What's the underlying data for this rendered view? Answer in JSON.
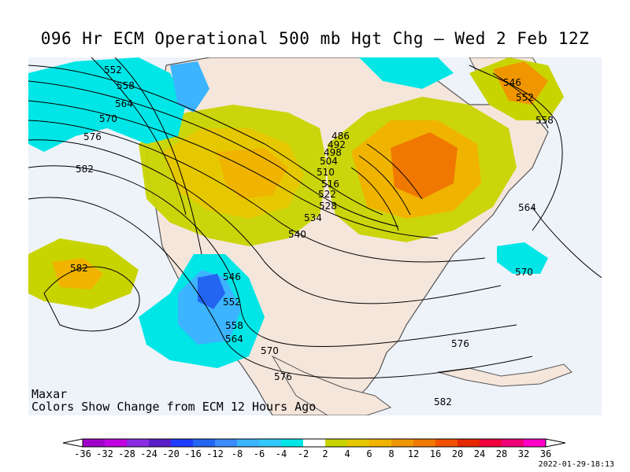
{
  "title": "096 Hr ECM Operational 500 mb Hgt Chg — Wed 2 Feb 12Z",
  "credit_line1": "Maxar",
  "credit_line2": "Colors Show Change from ECM 12 Hours Ago",
  "timestamp": "2022-01-29-18:13",
  "contour_labels": [
    "552",
    "558",
    "564",
    "570",
    "576",
    "582",
    "486",
    "492",
    "498",
    "504",
    "510",
    "516",
    "522",
    "528",
    "534",
    "540",
    "546",
    "552",
    "558",
    "564",
    "570",
    "576",
    "582",
    "546",
    "552",
    "558",
    "564",
    "570",
    "576",
    "582",
    "546",
    "552",
    "558",
    "564",
    "570",
    "576",
    "582"
  ],
  "colorbar": {
    "ticks": [
      "-36",
      "-32",
      "-28",
      "-24",
      "-20",
      "-16",
      "-12",
      "-8",
      "-6",
      "-4",
      "-2",
      "2",
      "4",
      "6",
      "8",
      "12",
      "16",
      "20",
      "24",
      "28",
      "32",
      "36"
    ],
    "colors": [
      "#a000c8",
      "#c000e0",
      "#8a2be2",
      "#5a1ec8",
      "#1e3cff",
      "#2364f0",
      "#3c8cff",
      "#3cb4ff",
      "#32c8ff",
      "#00e6e6",
      "#ffffff",
      "#c8d400",
      "#e6c800",
      "#f0b400",
      "#f09600",
      "#f07800",
      "#f05000",
      "#e62800",
      "#f0003c",
      "#f00078",
      "#ff00c8"
    ],
    "arrow_left": "#ffffff",
    "arrow_right": "#ffffff"
  },
  "field_colors": {
    "ocean": "#eef3fa",
    "land": "#f5e6dc",
    "positive_weak": "#c8d400",
    "positive_mod": "#e6c800",
    "positive_strong": "#f09600",
    "positive_max": "#f07800",
    "negative_weak": "#00e6e6",
    "negative_mod": "#3cb4ff",
    "negative_strong": "#2364f0"
  }
}
